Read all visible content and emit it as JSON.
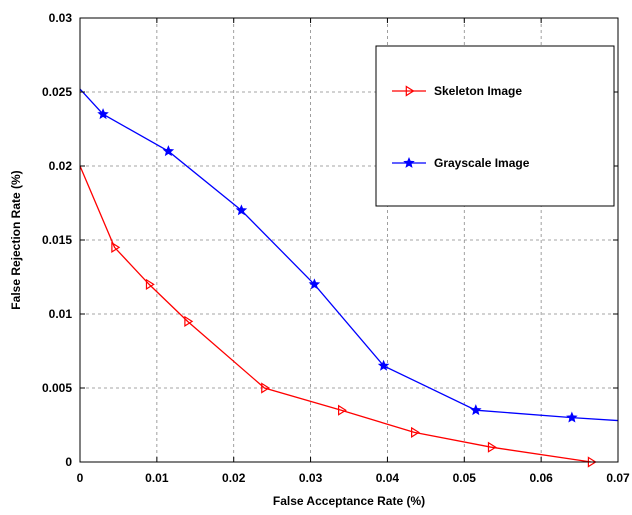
{
  "chart_data": {
    "type": "line",
    "title": "",
    "xlabel": "False Acceptance Rate (%)",
    "ylabel": "False Rejection Rate (%)",
    "xlim": [
      0,
      0.07
    ],
    "ylim": [
      0,
      0.03
    ],
    "x_ticks": [
      0,
      0.01,
      0.02,
      0.03,
      0.04,
      0.05,
      0.06,
      0.07
    ],
    "x_tick_labels": [
      "0",
      "0.01",
      "0.02",
      "0.03",
      "0.04",
      "0.05",
      "0.06",
      "0.07"
    ],
    "y_ticks": [
      0,
      0.005,
      0.01,
      0.015,
      0.02,
      0.025,
      0.03
    ],
    "y_tick_labels": [
      "0",
      "0.005",
      "0.01",
      "0.015",
      "0.02",
      "0.025",
      "0.03"
    ],
    "grid": true,
    "legend_position": "top-right",
    "series": [
      {
        "name": "Skeleton Image",
        "color": "#ff0000",
        "marker": "triangle-right",
        "points": [
          {
            "x": 0.0,
            "y": 0.02
          },
          {
            "x": 0.0045,
            "y": 0.0145
          },
          {
            "x": 0.009,
            "y": 0.012
          },
          {
            "x": 0.014,
            "y": 0.0095
          },
          {
            "x": 0.024,
            "y": 0.005
          },
          {
            "x": 0.034,
            "y": 0.0035
          },
          {
            "x": 0.0435,
            "y": 0.002
          },
          {
            "x": 0.0535,
            "y": 0.001
          },
          {
            "x": 0.0665,
            "y": 0.0
          }
        ]
      },
      {
        "name": "Grayscale Image",
        "color": "#0000ff",
        "marker": "star",
        "points": [
          {
            "x": 0.0,
            "y": 0.0252
          },
          {
            "x": 0.003,
            "y": 0.0235
          },
          {
            "x": 0.0115,
            "y": 0.021
          },
          {
            "x": 0.021,
            "y": 0.017
          },
          {
            "x": 0.0305,
            "y": 0.012
          },
          {
            "x": 0.0395,
            "y": 0.0065
          },
          {
            "x": 0.0515,
            "y": 0.0035
          },
          {
            "x": 0.064,
            "y": 0.003
          },
          {
            "x": 0.07,
            "y": 0.0028
          }
        ]
      }
    ]
  }
}
